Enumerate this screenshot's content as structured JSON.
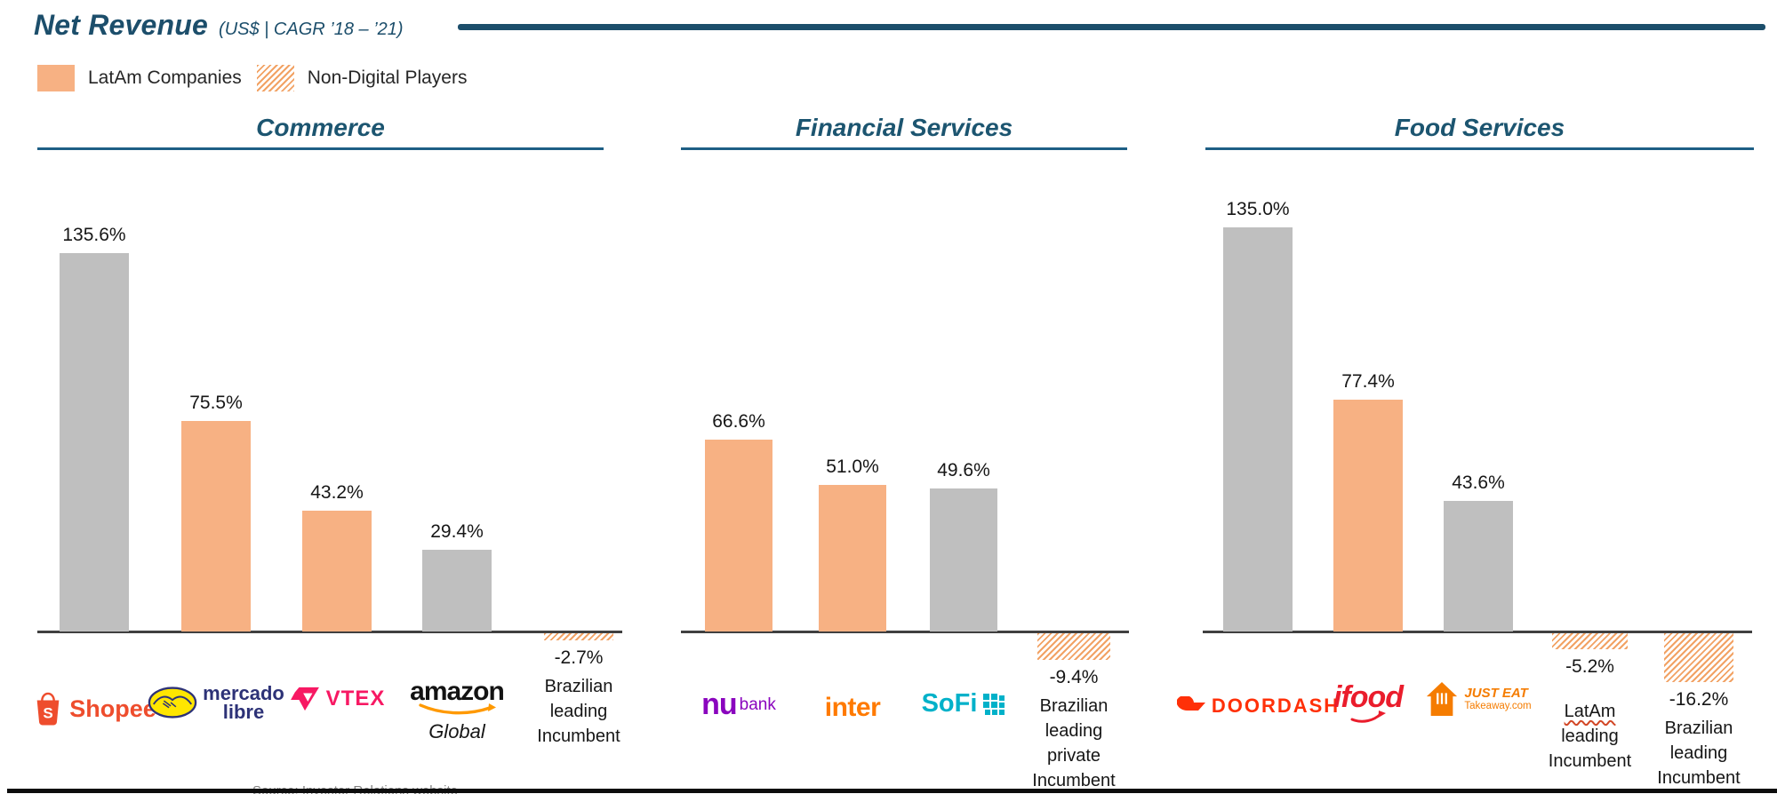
{
  "header": {
    "title": "Net Revenue",
    "subtitle": "(US$ | CAGR ’18 – ’21)"
  },
  "legend": [
    {
      "label": "LatAm Companies",
      "swatch": "solid-orange"
    },
    {
      "label": "Non-Digital Players",
      "swatch": "hatched-orange"
    }
  ],
  "footer": {
    "source": "Source: Investor Relations website"
  },
  "colors": {
    "latam_bar": "#F7B183",
    "global_digital_bar": "#BFBFBF",
    "non_digital_stripe": "#F2A264",
    "header_blue": "#1C4E6B",
    "section_blue": "#1C5570",
    "underline_blue": "#1E5F85",
    "baseline_gray": "#404040"
  },
  "brand_colors": {
    "shopee": "#EE4D2D",
    "mercadolibre_blue": "#2D3277",
    "mercadolibre_yellow": "#FFE600",
    "vtex": "#F71963",
    "amazon_dark": "#131313",
    "amazon_orange": "#FF9900",
    "nubank": "#8A05BE",
    "inter": "#FF7A00",
    "sofi": "#00B1C9",
    "doordash": "#FF3008",
    "ifood": "#EA1D2C",
    "justeat": "#F57C00"
  },
  "chart_data": [
    {
      "type": "bar",
      "title": "Commerce",
      "ylabel": "Net Revenue CAGR 2018-2021 (%)",
      "grid": false,
      "categories": [
        "Shopee",
        "Mercado Libre",
        "VTEX",
        "Amazon Global",
        "Brazilian leading Incumbent"
      ],
      "values": [
        135.6,
        75.5,
        43.2,
        29.4,
        -2.7
      ],
      "companies": [
        {
          "name": "Shopee",
          "value": 135.6,
          "label": "135.6%",
          "group": "global-digital",
          "logo": "shopee",
          "logo_text": "Shopee"
        },
        {
          "name": "Mercado Libre",
          "value": 75.5,
          "label": "75.5%",
          "group": "latam",
          "logo": "mercadolibre",
          "logo_text": [
            "mercado",
            "libre"
          ]
        },
        {
          "name": "VTEX",
          "value": 43.2,
          "label": "43.2%",
          "group": "latam",
          "logo": "vtex",
          "logo_text": "VTEX"
        },
        {
          "name": "Amazon Global",
          "value": 29.4,
          "label": "29.4%",
          "group": "global-digital",
          "logo": "amazon",
          "logo_text": "amazon",
          "sub_label": "Global"
        },
        {
          "name": "Brazilian leading Incumbent",
          "value": -2.7,
          "label": "-2.7%",
          "group": "non-digital",
          "caption": [
            "Brazilian",
            "leading",
            "Incumbent"
          ]
        }
      ]
    },
    {
      "type": "bar",
      "title": "Financial Services",
      "ylabel": "Net Revenue CAGR 2018-2021 (%)",
      "grid": false,
      "categories": [
        "Nubank",
        "Inter",
        "SoFi",
        "Brazilian leading private Incumbent"
      ],
      "values": [
        66.6,
        51.0,
        49.6,
        -9.4
      ],
      "companies": [
        {
          "name": "Nubank",
          "value": 66.6,
          "label": "66.6%",
          "group": "latam",
          "logo": "nubank",
          "logo_text": [
            "nu",
            "bank"
          ]
        },
        {
          "name": "Inter",
          "value": 51.0,
          "label": "51.0%",
          "group": "latam",
          "logo": "inter",
          "logo_text": "inter"
        },
        {
          "name": "SoFi",
          "value": 49.6,
          "label": "49.6%",
          "group": "global-digital",
          "logo": "sofi",
          "logo_text": "SoFi"
        },
        {
          "name": "Brazilian leading private Incumbent",
          "value": -9.4,
          "label": "-9.4%",
          "group": "non-digital",
          "caption": [
            "Brazilian",
            "leading",
            "private",
            "Incumbent"
          ]
        }
      ]
    },
    {
      "type": "bar",
      "title": "Food Services",
      "ylabel": "Net Revenue CAGR 2018-2021 (%)",
      "grid": false,
      "categories": [
        "DoorDash",
        "iFood",
        "Just Eat Takeaway.com",
        "LatAm leading Incumbent",
        "Brazilian leading Incumbent"
      ],
      "values": [
        135.0,
        77.4,
        43.6,
        -5.2,
        -16.2
      ],
      "companies": [
        {
          "name": "DoorDash",
          "value": 135.0,
          "label": "135.0%",
          "group": "global-digital",
          "logo": "doordash",
          "logo_text": "DOORDASH"
        },
        {
          "name": "iFood",
          "value": 77.4,
          "label": "77.4%",
          "group": "latam",
          "logo": "ifood",
          "logo_text": "ifood"
        },
        {
          "name": "Just Eat Takeaway.com",
          "value": 43.6,
          "label": "43.6%",
          "group": "global-digital",
          "logo": "justeat",
          "logo_text": [
            "JUST EAT",
            "Takeaway.com"
          ]
        },
        {
          "name": "LatAm leading Incumbent",
          "value": -5.2,
          "label": "-5.2%",
          "group": "non-digital",
          "caption": [
            "LatAm",
            "leading",
            "Incumbent"
          ],
          "misspelled": [
            "LatAm"
          ],
          "caption_gap": 18
        },
        {
          "name": "Brazilian leading Incumbent",
          "value": -16.2,
          "label": "-16.2%",
          "group": "non-digital",
          "caption": [
            "Brazilian",
            "leading",
            "Incumbent"
          ]
        }
      ]
    }
  ]
}
